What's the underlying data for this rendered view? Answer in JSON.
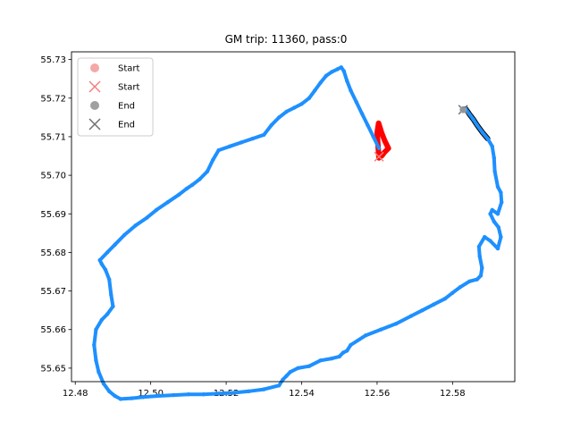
{
  "chart_data": {
    "type": "scatter",
    "title": "GM trip: 11360, pass:0",
    "xlabel": "",
    "ylabel": "",
    "xlim": [
      12.479,
      12.5965
    ],
    "ylim": [
      55.6465,
      55.732
    ],
    "x_ticks": [
      12.48,
      12.5,
      12.52,
      12.54,
      12.56,
      12.58
    ],
    "x_tick_labels": [
      "12.48",
      "12.50",
      "12.52",
      "12.54",
      "12.56",
      "12.58"
    ],
    "y_ticks": [
      55.65,
      55.66,
      55.67,
      55.68,
      55.69,
      55.7,
      55.71,
      55.72,
      55.73
    ],
    "y_tick_labels": [
      "55.65",
      "55.66",
      "55.67",
      "55.68",
      "55.69",
      "55.70",
      "55.71",
      "55.72",
      "55.73"
    ],
    "grid": false,
    "legend_position": "top-left",
    "legend": [
      {
        "label": "Start",
        "marker": "circle",
        "color": "#f4a8a8"
      },
      {
        "label": "Start",
        "marker": "x",
        "color": "#f08080"
      },
      {
        "label": "End",
        "marker": "circle",
        "color": "#a0a0a0"
      },
      {
        "label": "End",
        "marker": "x",
        "color": "#707070"
      }
    ],
    "series": [
      {
        "color": "#000000",
        "x": [
          12.5828,
          12.5835,
          12.5845,
          12.5855,
          12.5865,
          12.588,
          12.5893
        ],
        "y": [
          55.717,
          55.7172,
          55.7158,
          55.7145,
          55.713,
          55.711,
          55.7095
        ]
      },
      {
        "color": "#ff0000",
        "x": [
          12.5605,
          12.56,
          12.5604,
          12.5612,
          12.562,
          12.563,
          12.562,
          12.5612
        ],
        "y": [
          55.7045,
          55.711,
          55.7135,
          55.711,
          55.709,
          55.707,
          55.706,
          55.705
        ]
      },
      {
        "color": "#1e90ff",
        "x": [
          12.5828,
          12.5835,
          12.5845,
          12.5855,
          12.5865,
          12.588,
          12.5893,
          12.5905,
          12.591,
          12.5912,
          12.592,
          12.5928,
          12.593,
          12.592,
          12.5905,
          12.59,
          12.591,
          12.5922,
          12.5928,
          12.592,
          12.59,
          12.5885,
          12.587,
          12.5872,
          12.5878,
          12.5875,
          12.5865,
          12.5845,
          12.582,
          12.58,
          12.578,
          12.575,
          12.572,
          12.569,
          12.565,
          12.561,
          12.557,
          12.553,
          12.552,
          12.551,
          12.55,
          12.548,
          12.545,
          12.542,
          12.539,
          12.537,
          12.536,
          12.535,
          12.534,
          12.53,
          12.526,
          12.522,
          12.518,
          12.514,
          12.51,
          12.506,
          12.502,
          12.498,
          12.495,
          12.492,
          12.4905,
          12.489,
          12.4875,
          12.4862,
          12.4855,
          12.485,
          12.4855,
          12.487,
          12.4885,
          12.49,
          12.4895,
          12.489,
          12.488,
          12.487,
          12.4865,
          12.4885,
          12.4905,
          12.493,
          12.496,
          12.499,
          12.5015,
          12.5045,
          12.5075,
          12.5095,
          12.511,
          12.513,
          12.515,
          12.5165,
          12.518,
          12.521,
          12.524,
          12.527,
          12.53,
          12.532,
          12.534,
          12.536,
          12.538,
          12.54,
          12.542,
          12.5435,
          12.545,
          12.5465,
          12.548,
          12.5495,
          12.5505,
          12.5512,
          12.552,
          12.553,
          12.5545,
          12.556,
          12.5575,
          12.559,
          12.5605
        ],
        "y": [
          55.717,
          55.7172,
          55.7158,
          55.7145,
          55.713,
          55.711,
          55.7095,
          55.7075,
          55.7045,
          55.701,
          55.697,
          55.6955,
          55.693,
          55.69,
          55.691,
          55.69,
          55.688,
          55.6865,
          55.684,
          55.681,
          55.683,
          55.684,
          55.6815,
          55.679,
          55.676,
          55.674,
          55.673,
          55.6725,
          55.671,
          55.6695,
          55.668,
          55.6665,
          55.665,
          55.6635,
          55.6615,
          55.66,
          55.6585,
          55.656,
          55.6545,
          55.654,
          55.653,
          55.6525,
          55.652,
          55.6505,
          55.65,
          55.649,
          55.648,
          55.647,
          55.6455,
          55.6445,
          55.644,
          55.6436,
          55.6434,
          55.6432,
          55.6432,
          55.643,
          55.6428,
          55.6425,
          55.6422,
          55.642,
          55.6428,
          55.644,
          55.646,
          55.649,
          55.652,
          55.656,
          55.66,
          55.6625,
          55.664,
          55.666,
          55.669,
          55.673,
          55.6755,
          55.677,
          55.678,
          55.68,
          55.682,
          55.6845,
          55.687,
          55.689,
          55.691,
          55.693,
          55.695,
          55.6965,
          55.6975,
          55.699,
          55.701,
          55.704,
          55.7065,
          55.7075,
          55.7085,
          55.7095,
          55.7105,
          55.713,
          55.715,
          55.7165,
          55.7175,
          55.7185,
          55.72,
          55.722,
          55.724,
          55.7258,
          55.7268,
          55.7275,
          55.728,
          55.727,
          55.7245,
          55.722,
          55.719,
          55.716,
          55.713,
          55.71,
          55.707
        ]
      }
    ],
    "markers": [
      {
        "label": "Start",
        "marker": "x",
        "color": "#f08080",
        "x": 12.5605,
        "y": 55.7048
      },
      {
        "label": "End",
        "marker": "x",
        "color": "#707070",
        "x": 12.5828,
        "y": 55.717
      },
      {
        "label": "End",
        "marker": "circle",
        "color": "#a0a0a0",
        "x": 12.5828,
        "y": 55.717
      }
    ]
  }
}
